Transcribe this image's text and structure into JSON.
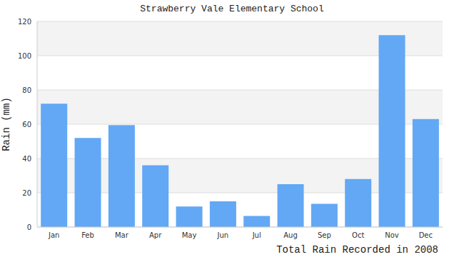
{
  "chart_data": {
    "type": "bar",
    "title": "Strawberry Vale Elementary School",
    "x_label": "Total Rain Recorded in 2008",
    "y_label": "Rain (mm)",
    "categories": [
      "Jan",
      "Feb",
      "Mar",
      "Apr",
      "May",
      "Jun",
      "Jul",
      "Aug",
      "Sep",
      "Oct",
      "Nov",
      "Dec"
    ],
    "values": [
      72,
      52,
      59.5,
      36,
      12,
      15,
      6.5,
      25,
      13.5,
      28,
      112,
      63
    ],
    "color": "#62a8f5",
    "ylim": [
      0,
      120
    ],
    "yticks": [
      0,
      20,
      40,
      60,
      80,
      100,
      120
    ],
    "grid": true
  }
}
